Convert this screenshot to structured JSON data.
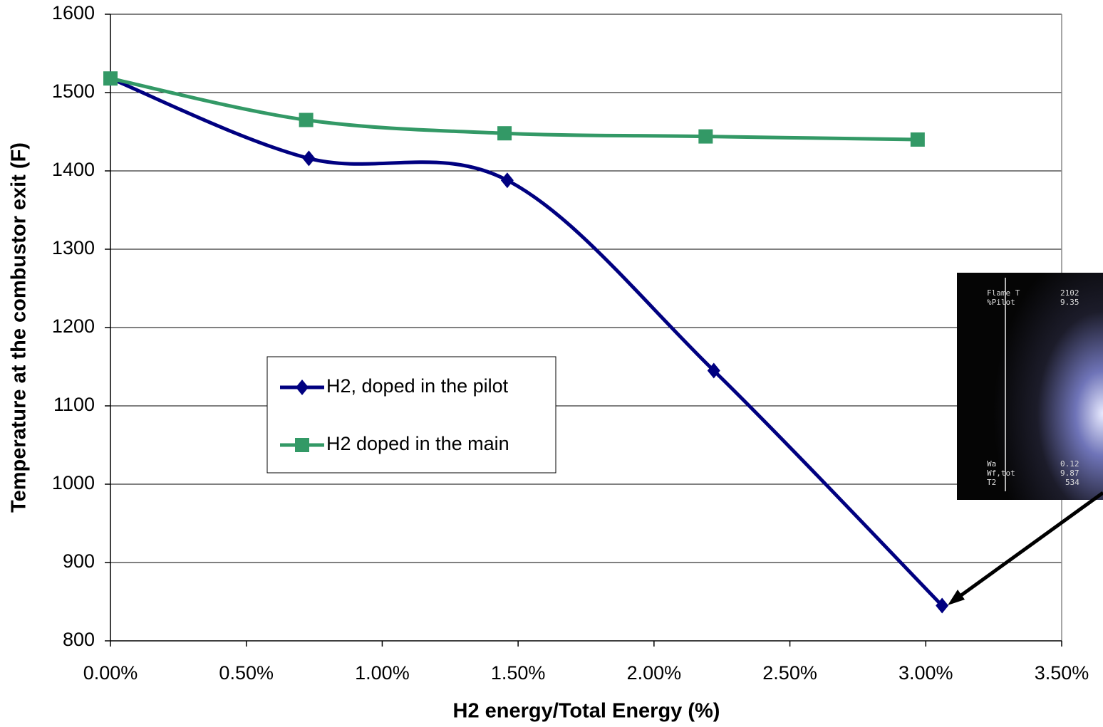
{
  "chart_data": {
    "type": "line",
    "x_label": "H2 energy/Total Energy (%)",
    "y_label": "Temperature at the combustor exit (F)",
    "xlim": [
      0,
      3.5
    ],
    "xticks": [
      {
        "value": 0,
        "label": "0.00%"
      },
      {
        "value": 0.5,
        "label": "0.50%"
      },
      {
        "value": 1,
        "label": "1.00%"
      },
      {
        "value": 1.5,
        "label": "1.50%"
      },
      {
        "value": 2,
        "label": "2.00%"
      },
      {
        "value": 2.5,
        "label": "2.50%"
      },
      {
        "value": 3,
        "label": "3.00%"
      },
      {
        "value": 3.5,
        "label": "3.50%"
      }
    ],
    "ylim": [
      800,
      1600
    ],
    "yticks": [
      800,
      900,
      1000,
      1100,
      1200,
      1300,
      1400,
      1500,
      1600
    ],
    "grid": true,
    "smooth": true,
    "series": [
      {
        "name": "H2, doped in the pilot",
        "color": "#000080",
        "marker": "diamond",
        "x": [
          0,
          0.73,
          1.46,
          2.22,
          3.06
        ],
        "values": [
          1518,
          1416,
          1388,
          1145,
          845
        ]
      },
      {
        "name": "H2 doped in the main",
        "color": "#339966",
        "marker": "square",
        "x": [
          0,
          0.72,
          1.45,
          2.19,
          2.97
        ],
        "values": [
          1518,
          1465,
          1448,
          1444,
          1440
        ]
      }
    ],
    "inset_text": [
      "Flame T",
      "2102",
      "%Pilot",
      "9.35",
      "Wa",
      "0.12",
      "Wf,tot",
      "9.87",
      "T2",
      "534"
    ]
  }
}
